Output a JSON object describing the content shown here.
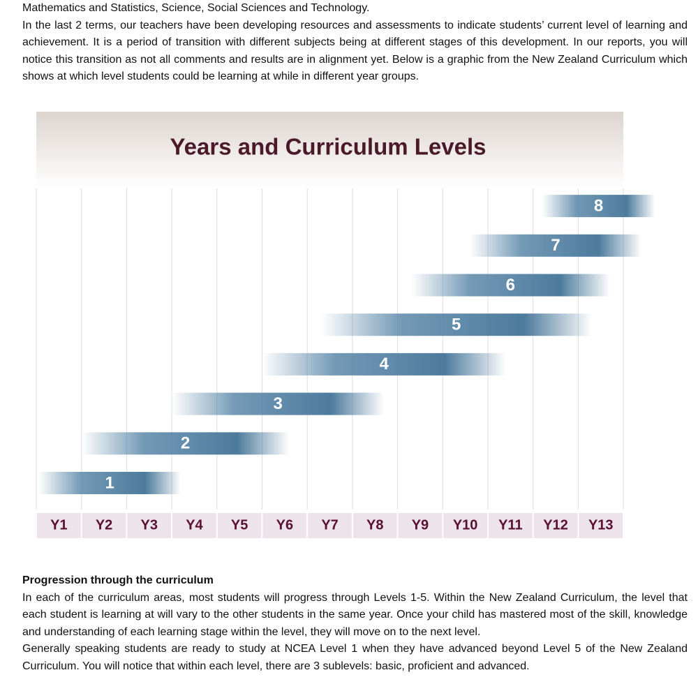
{
  "paragraphs_top": [
    "Mathematics and Statistics, Science, Social Sciences and Technology.",
    "In the last 2 terms, our teachers have been developing resources and assessments to indicate students’ current level of learning and achievement. It is a period of transition with different subjects being at different stages of this development. In our reports, you will notice this transition as not all comments and results are in alignment yet. Below is a graphic from the New Zealand Curriculum which shows at which level students could be learning at while in different year groups."
  ],
  "graphic": {
    "title": "Years and Curriculum Levels",
    "years": [
      "Y1",
      "Y2",
      "Y3",
      "Y4",
      "Y5",
      "Y6",
      "Y7",
      "Y8",
      "Y9",
      "Y10",
      "Y11",
      "Y12",
      "Y13"
    ],
    "levels": [
      {
        "label": "1",
        "span": [
          0.05,
          3.2
        ]
      },
      {
        "label": "2",
        "span": [
          1.0,
          5.6
        ]
      },
      {
        "label": "3",
        "span": [
          3.0,
          7.7
        ]
      },
      {
        "label": "4",
        "span": [
          5.0,
          10.4
        ]
      },
      {
        "label": "5",
        "span": [
          6.3,
          12.3
        ]
      },
      {
        "label": "6",
        "span": [
          8.3,
          12.7
        ]
      },
      {
        "label": "7",
        "span": [
          9.6,
          13.4
        ]
      },
      {
        "label": "8",
        "span": [
          11.2,
          13.7
        ]
      }
    ]
  },
  "section": {
    "heading": "Progression through the curriculum",
    "paragraphs": [
      "In each of the curriculum areas, most students will progress through Levels 1-5. Within the New Zealand Curriculum, the level that each student is learning at will vary to the other students in the same year. Once your child has mastered most of the skill, knowledge and understanding of each learning stage within the level, they will move on to the next level.",
      "Generally speaking students are ready to study at NCEA Level 1 when they have advanced beyond Level 5 of the New Zealand Curriculum. You will notice that within each level, there are 3 sublevels: basic, proficient and advanced."
    ]
  }
}
